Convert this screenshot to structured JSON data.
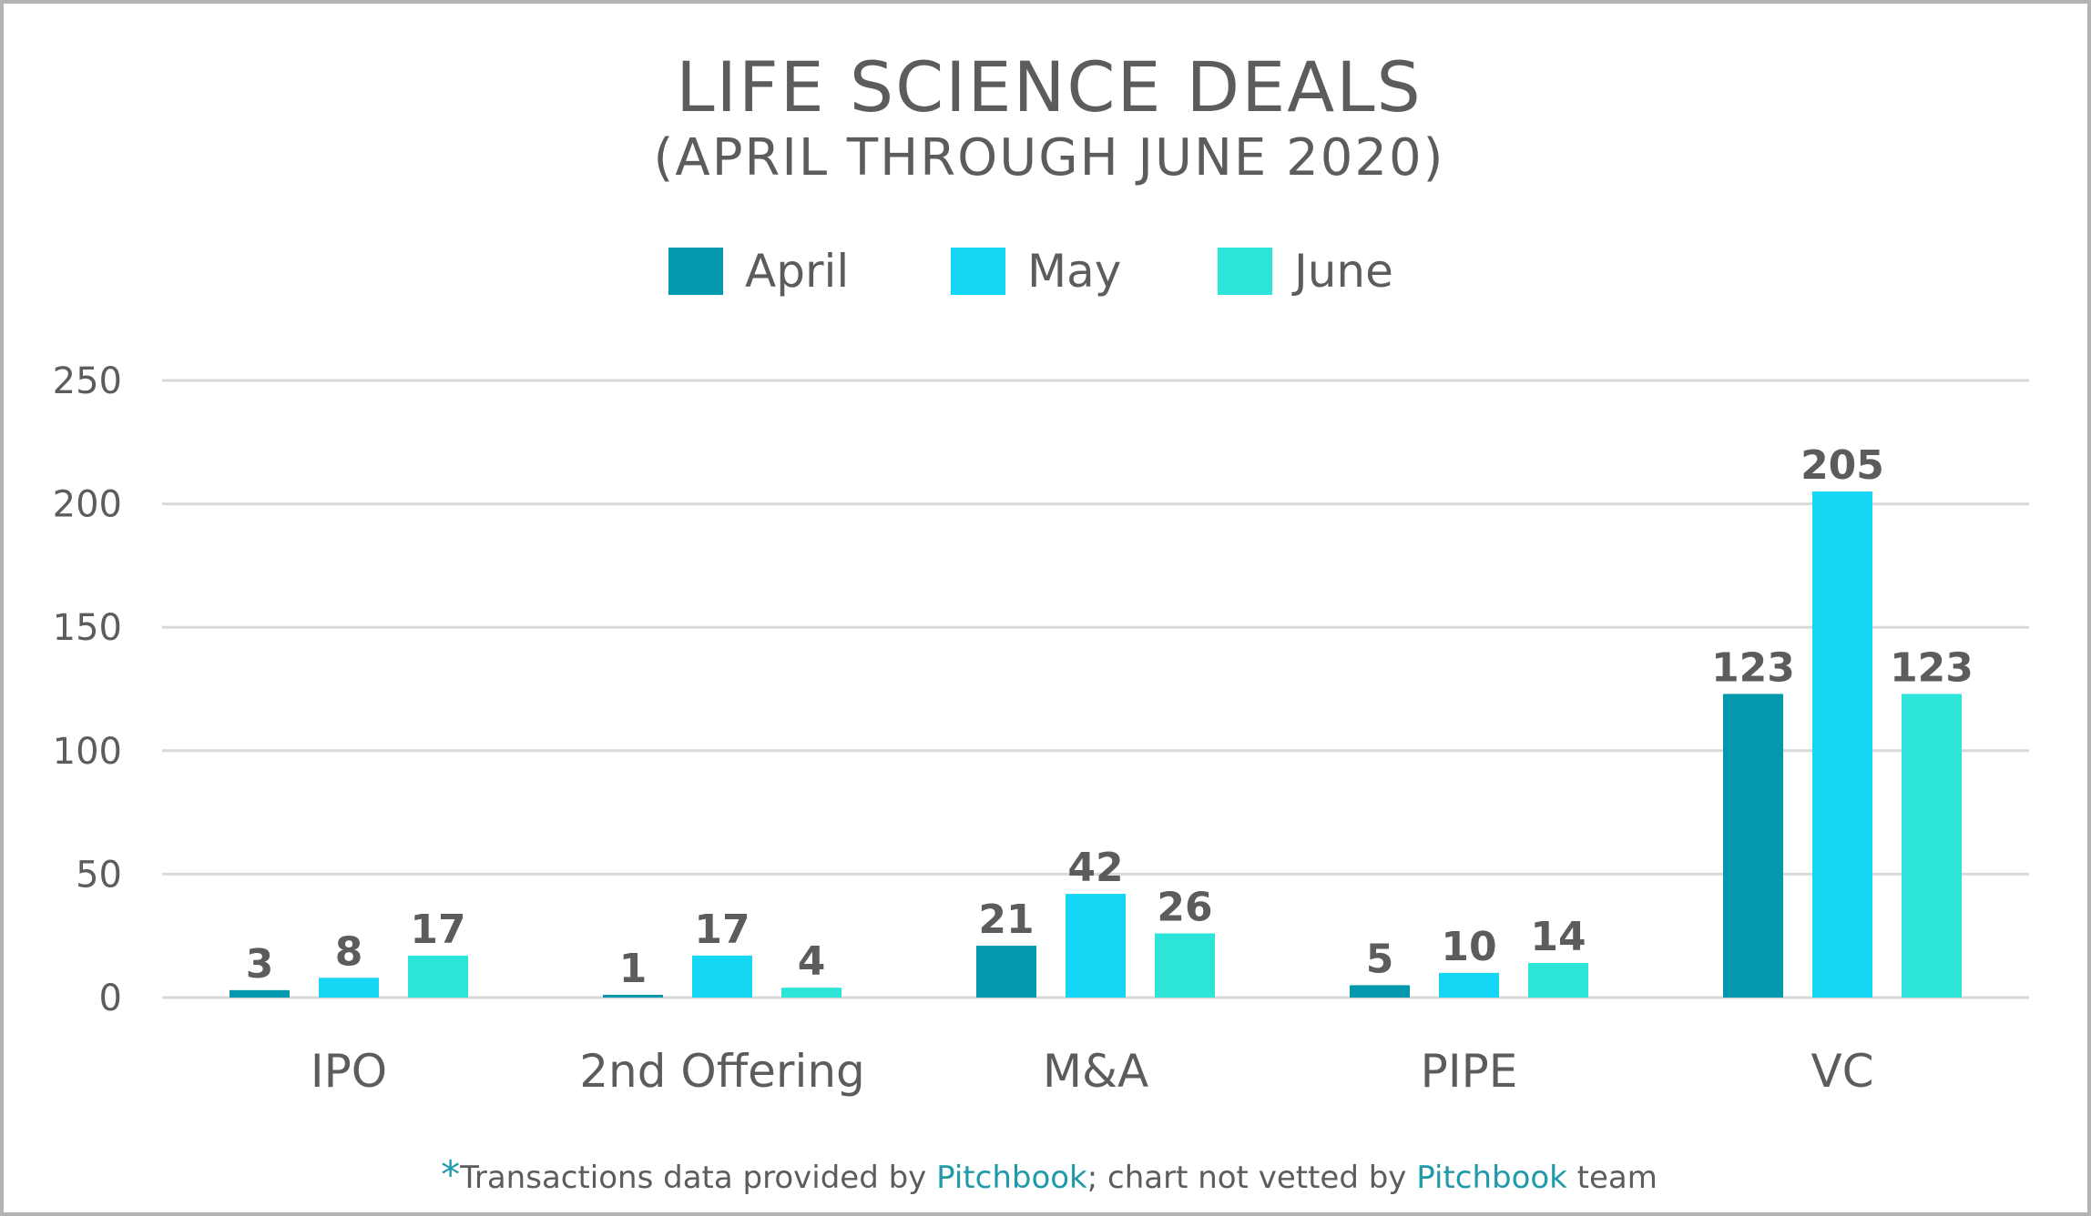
{
  "chart_data": {
    "type": "bar",
    "title": "LIFE SCIENCE DEALS",
    "subtitle": "(APRIL THROUGH JUNE 2020)",
    "categories": [
      "IPO",
      "2nd Offering",
      "M&A",
      "PIPE",
      "VC"
    ],
    "series": [
      {
        "name": "April",
        "color": "#0398ae",
        "values": [
          3,
          1,
          21,
          5,
          123
        ]
      },
      {
        "name": "May",
        "color": "#15d6f5",
        "values": [
          8,
          17,
          42,
          10,
          205
        ]
      },
      {
        "name": "June",
        "color": "#2ce5d8",
        "values": [
          17,
          4,
          26,
          14,
          123
        ]
      }
    ],
    "ylim": [
      0,
      250
    ],
    "yticks": [
      0,
      50,
      100,
      150,
      200,
      250
    ],
    "grid": true,
    "legend_position": "top-center"
  },
  "footnote": {
    "star": "*",
    "part1": "Transactions data provided by ",
    "brand1": "Pitchbook",
    "part2": "; chart not vetted by ",
    "brand2": "Pitchbook",
    "part3": " team"
  }
}
